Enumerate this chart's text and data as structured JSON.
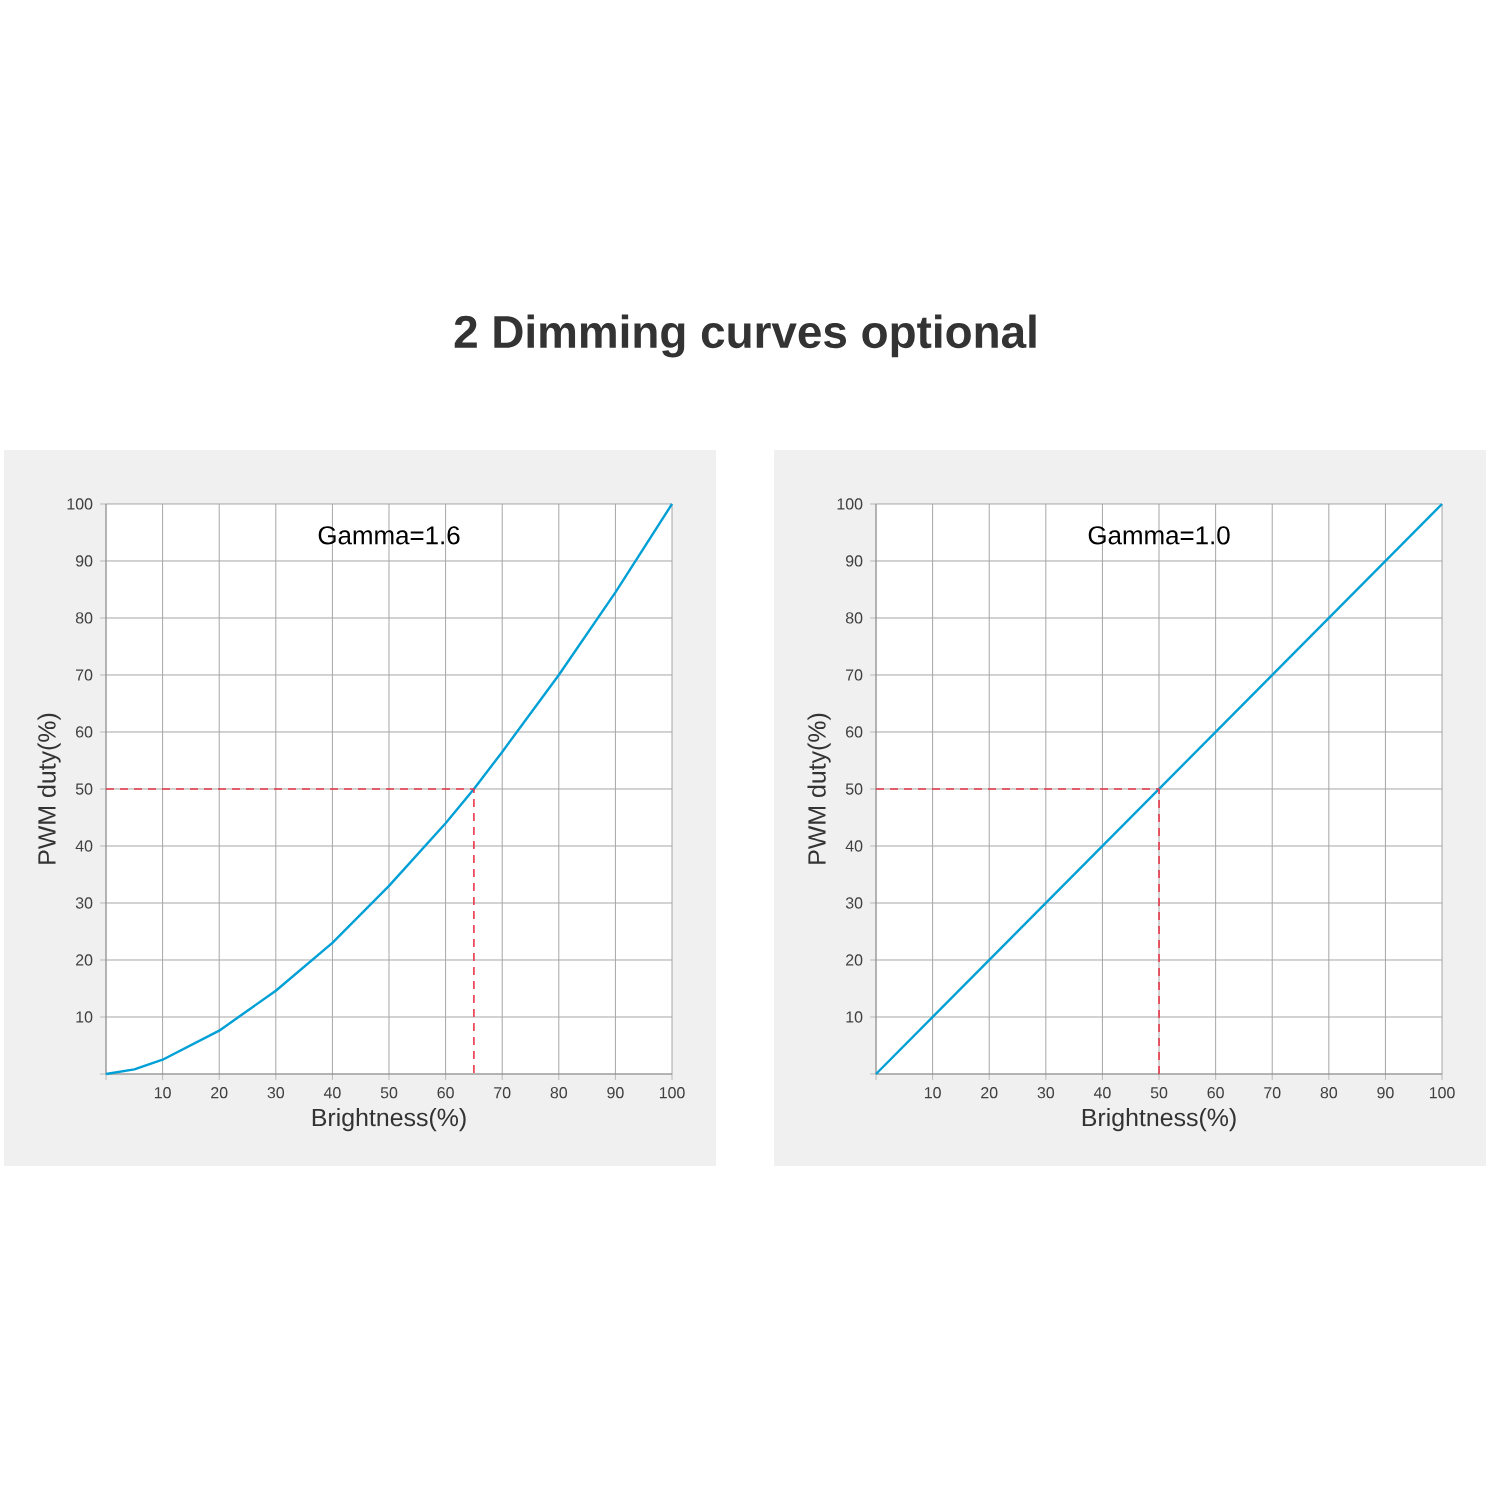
{
  "chart_data": [
    {
      "type": "line",
      "title": "2 Dimming curves optional",
      "xlabel": "Brightness(%)",
      "ylabel": "PWM duty(%)",
      "annotations": [
        "Gamma=1.6"
      ],
      "xlim": [
        0,
        100
      ],
      "ylim": [
        0,
        100
      ],
      "xticks": [
        {
          "value": 0,
          "label": null
        },
        10,
        20,
        30,
        40,
        50,
        60,
        70,
        80,
        90,
        100
      ],
      "yticks": [
        {
          "value": 0,
          "label": null
        },
        10,
        20,
        30,
        40,
        50,
        60,
        70,
        80,
        90,
        100
      ],
      "grid": true,
      "series": [
        {
          "color": "#00a0d6",
          "x": [
            0,
            5,
            10,
            20,
            30,
            40,
            50,
            60,
            65,
            70,
            80,
            90,
            100
          ],
          "values": [
            0,
            0.8,
            2.5,
            7.6,
            14.6,
            23,
            33,
            44,
            50,
            56.5,
            70,
            84.5,
            100
          ]
        },
        {
          "color": "#e8374a",
          "line_style": "dashed",
          "x": [
            0,
            65,
            65
          ],
          "values": [
            50,
            50,
            0
          ]
        }
      ]
    },
    {
      "type": "line",
      "xlabel": "Brightness(%)",
      "ylabel": "PWM duty(%)",
      "annotations": [
        "Gamma=1.0"
      ],
      "xlim": [
        0,
        100
      ],
      "ylim": [
        0,
        100
      ],
      "xticks": [
        {
          "value": 0,
          "label": null
        },
        10,
        20,
        30,
        40,
        50,
        60,
        70,
        80,
        90,
        100
      ],
      "yticks": [
        {
          "value": 0,
          "label": null
        },
        10,
        20,
        30,
        40,
        50,
        60,
        70,
        80,
        90,
        100
      ],
      "grid": true,
      "series": [
        {
          "color": "#00a0d6",
          "x": [
            0,
            100
          ],
          "values": [
            0,
            100
          ]
        },
        {
          "color": "#e8374a",
          "line_style": "dashed",
          "x": [
            0,
            50,
            50
          ],
          "values": [
            50,
            50,
            0
          ]
        }
      ]
    }
  ]
}
